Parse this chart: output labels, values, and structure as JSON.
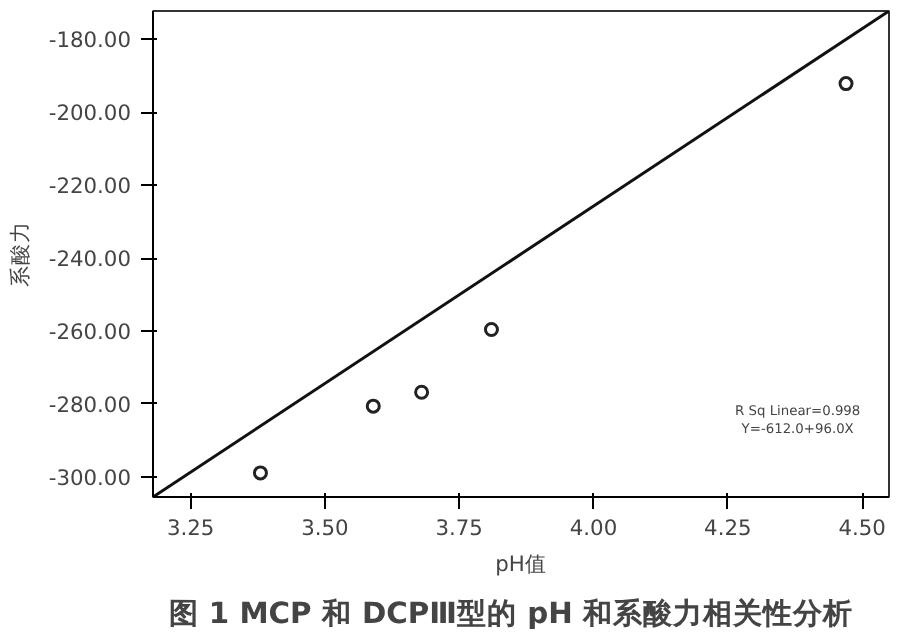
{
  "chart_data": {
    "type": "scatter",
    "title": "图 1   MCP 和 DCPⅢ型的 pH 和系酸力相关性分析",
    "xlabel": "pH值",
    "ylabel": "系酸力",
    "xlim": [
      3.18,
      4.55
    ],
    "ylim": [
      -305.5,
      -172.3
    ],
    "xticks": [
      {
        "value": 3.25,
        "label": "3.25"
      },
      {
        "value": 3.5,
        "label": "3.50"
      },
      {
        "value": 3.75,
        "label": "3.75"
      },
      {
        "value": 4.0,
        "label": "4.00"
      },
      {
        "value": 4.25,
        "label": "4.25"
      },
      {
        "value": 4.5,
        "label": "4.50"
      }
    ],
    "yticks": [
      {
        "value": -300,
        "label": "-300.00"
      },
      {
        "value": -280,
        "label": "-280.00"
      },
      {
        "value": -260,
        "label": "-260.00"
      },
      {
        "value": -240,
        "label": "-240.00"
      },
      {
        "value": -220,
        "label": "-220.00"
      },
      {
        "value": -200,
        "label": "-200.00"
      },
      {
        "value": -180,
        "label": "-180.00"
      }
    ],
    "grid": false,
    "series": [
      {
        "marker": "circle",
        "color": "#222222",
        "x": [
          3.38,
          3.59,
          3.68,
          3.81,
          4.47
        ],
        "values": [
          -298.9,
          -280.6,
          -276.8,
          -259.6,
          -192.2
        ]
      },
      {
        "type": "line",
        "color": "#111111",
        "x": [
          3.18,
          4.55
        ],
        "values": [
          -305.5,
          -172.3
        ]
      }
    ],
    "annotations": [
      "R Sq Linear=0.998",
      "Y=-612.0+96.0X"
    ]
  }
}
